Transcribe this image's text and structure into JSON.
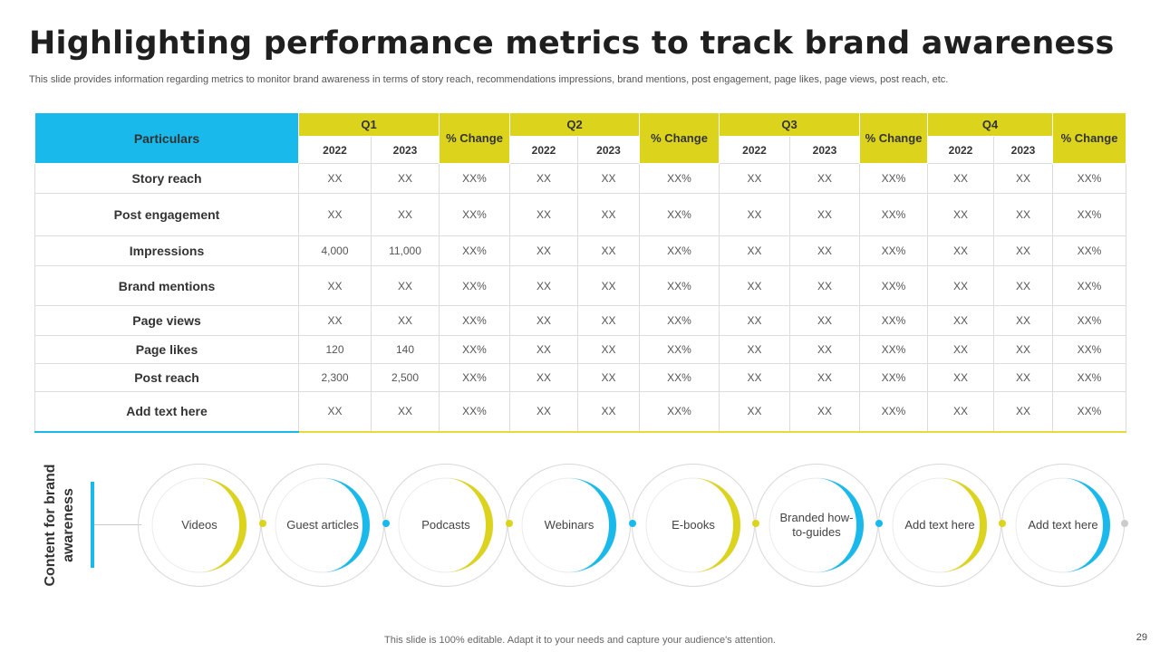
{
  "title": "Highlighting performance metrics to track brand awareness",
  "subtitle": "This slide provides information regarding metrics to monitor brand awareness in terms of story reach, recommendations impressions, brand mentions, post engagement, page likes, page views, post reach, etc.",
  "table": {
    "particulars_header": "Particulars",
    "quarters": [
      "Q1",
      "Q2",
      "Q3",
      "Q4"
    ],
    "change_label": "% Change",
    "years": [
      "2022",
      "2023"
    ],
    "rows": [
      {
        "name": "Story reach",
        "cells": [
          "XX",
          "XX",
          "XX%",
          "XX",
          "XX",
          "XX%",
          "XX",
          "XX",
          "XX%",
          "XX",
          "XX",
          "XX%"
        ]
      },
      {
        "name": "Post engagement",
        "cells": [
          "XX",
          "XX",
          "XX%",
          "XX",
          "XX",
          "XX%",
          "XX",
          "XX",
          "XX%",
          "XX",
          "XX",
          "XX%"
        ]
      },
      {
        "name": "Impressions",
        "cells": [
          "4,000",
          "11,000",
          "XX%",
          "XX",
          "XX",
          "XX%",
          "XX",
          "XX",
          "XX%",
          "XX",
          "XX",
          "XX%"
        ]
      },
      {
        "name": "Brand  mentions",
        "cells": [
          "XX",
          "XX",
          "XX%",
          "XX",
          "XX",
          "XX%",
          "XX",
          "XX",
          "XX%",
          "XX",
          "XX",
          "XX%"
        ]
      },
      {
        "name": "Page views",
        "cells": [
          "XX",
          "XX",
          "XX%",
          "XX",
          "XX",
          "XX%",
          "XX",
          "XX",
          "XX%",
          "XX",
          "XX",
          "XX%"
        ]
      },
      {
        "name": "Page likes",
        "cells": [
          "120",
          "140",
          "XX%",
          "XX",
          "XX",
          "XX%",
          "XX",
          "XX",
          "XX%",
          "XX",
          "XX",
          "XX%"
        ]
      },
      {
        "name": "Post reach",
        "cells": [
          "2,300",
          "2,500",
          "XX%",
          "XX",
          "XX",
          "XX%",
          "XX",
          "XX",
          "XX%",
          "XX",
          "XX",
          "XX%"
        ]
      },
      {
        "name": "Add text here",
        "cells": [
          "XX",
          "XX",
          "XX%",
          "XX",
          "XX",
          "XX%",
          "XX",
          "XX",
          "XX%",
          "XX",
          "XX",
          "XX%"
        ]
      }
    ]
  },
  "content_label": "Content for brand awareness",
  "content_items": [
    {
      "label": "Videos",
      "color": "#dcd41c"
    },
    {
      "label": "Guest articles",
      "color": "#19b9ec"
    },
    {
      "label": "Podcasts",
      "color": "#dcd41c"
    },
    {
      "label": "Webinars",
      "color": "#19b9ec"
    },
    {
      "label": "E-books",
      "color": "#dcd41c"
    },
    {
      "label": "Branded how-to-guides",
      "color": "#19b9ec"
    },
    {
      "label": "Add text here",
      "color": "#dcd41c"
    },
    {
      "label": "Add text here",
      "color": "#19b9ec"
    }
  ],
  "dot_colors": [
    "#dcd41c",
    "#19b9ec",
    "#dcd41c",
    "#19b9ec",
    "#dcd41c",
    "#19b9ec",
    "#dcd41c",
    "#cccccc"
  ],
  "footer": "This slide is 100% editable. Adapt it to your needs and capture your audience's attention.",
  "page_number": "29",
  "colors": {
    "yellow": "#dcd41c",
    "blue": "#19b9ec"
  }
}
